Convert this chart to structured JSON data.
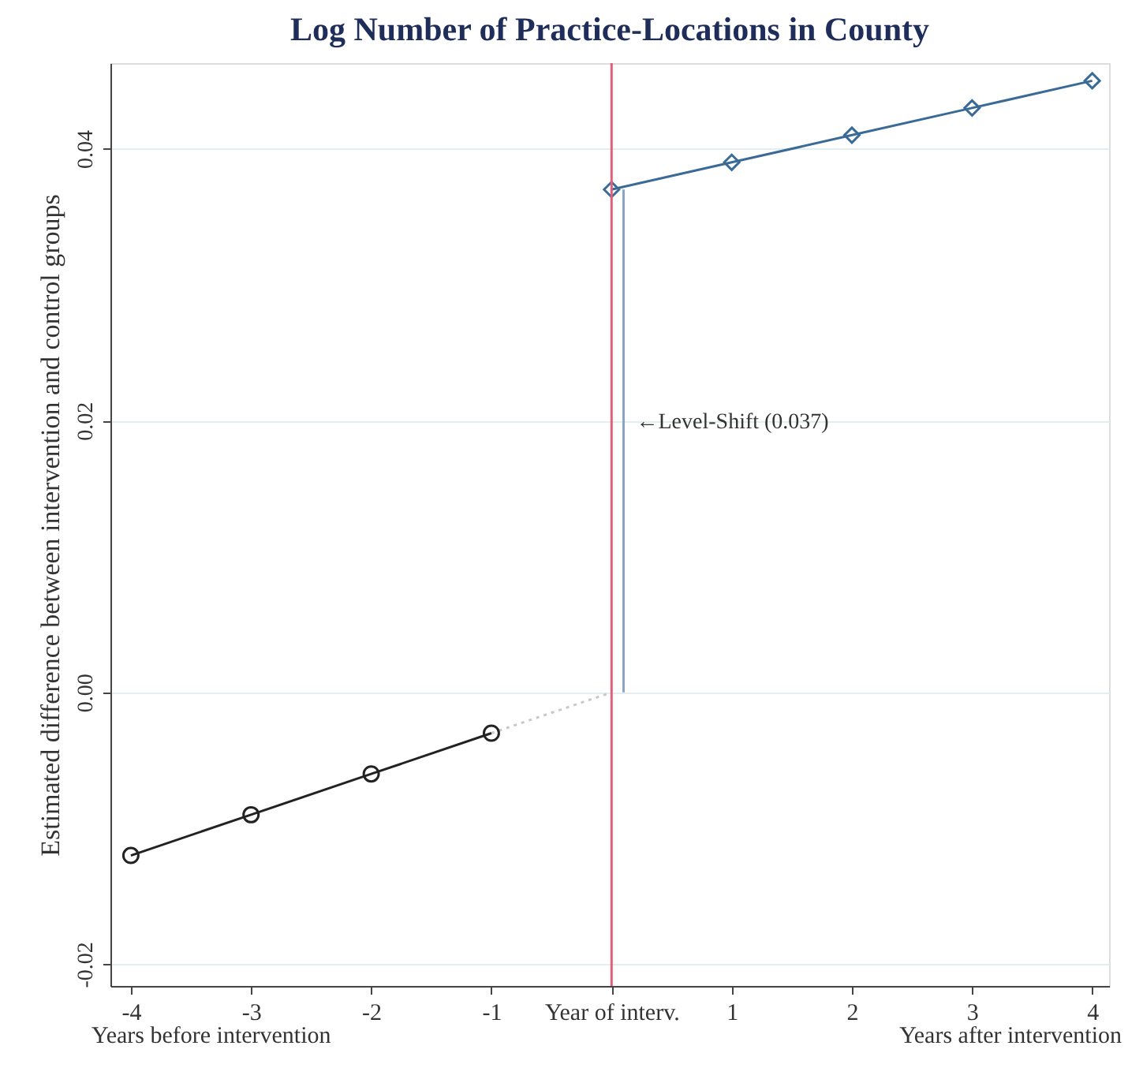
{
  "chart_data": {
    "type": "line",
    "title": "Log Number of Practice-Locations in County",
    "ylabel": "Estimated difference between intervention and control groups",
    "xlim": [
      -4.17,
      4.14
    ],
    "xticks": [
      -4,
      -3,
      -2,
      -1,
      {
        "value": 0,
        "label": "Year of interv."
      },
      1,
      2,
      3,
      4
    ],
    "ylim": [
      -0.0216,
      0.0463
    ],
    "yticks": [
      {
        "value": -0.02,
        "label": "-0.02"
      },
      {
        "value": 0,
        "label": "0.00"
      },
      {
        "value": 0.02,
        "label": "0.02"
      },
      {
        "value": 0.04,
        "label": "0.04"
      }
    ],
    "grid": "y",
    "ref_lines": [
      {
        "axis": "x",
        "value": 0,
        "color": "#e0607a",
        "line_style": "solid"
      }
    ],
    "series": [
      {
        "color": "#c8c8c8",
        "line_style": "dotted",
        "marker": "none",
        "x": [
          -1,
          0
        ],
        "values": [
          -0.003,
          0
        ]
      },
      {
        "color": "#8aa4c4",
        "line_style": "solid",
        "marker": "none",
        "x": [
          0.1,
          0.1
        ],
        "values": [
          0,
          0.037
        ]
      },
      {
        "color": "#222222",
        "line_style": "solid",
        "marker": "circle",
        "x": [
          -4,
          -3,
          -2,
          -1
        ],
        "values": [
          -0.012,
          -0.009,
          -0.006,
          -0.003
        ]
      },
      {
        "color": "#3a6a96",
        "line_style": "solid",
        "marker": "diamond",
        "x": [
          0,
          1,
          2,
          3,
          4
        ],
        "values": [
          0.037,
          0.039,
          0.041,
          0.043,
          0.045
        ]
      }
    ],
    "annotations": [
      "←Level-Shift (0.037)",
      "Years before intervention",
      "Years after intervention"
    ]
  }
}
